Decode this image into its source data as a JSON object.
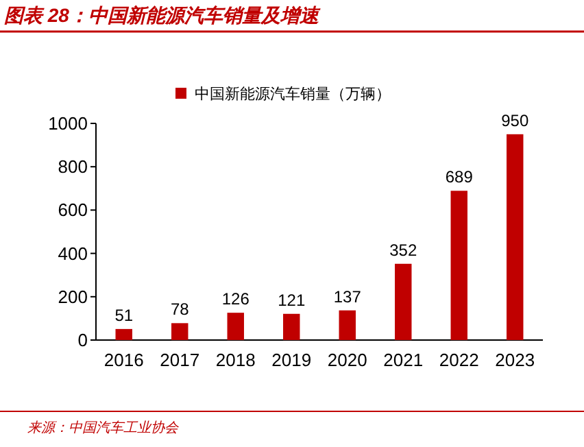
{
  "chart_data": {
    "type": "bar",
    "title": "图表 28：中国新能源汽车销量及增速",
    "categories": [
      "2016",
      "2017",
      "2018",
      "2019",
      "2020",
      "2021",
      "2022",
      "2023"
    ],
    "series": [
      {
        "name": "中国新能源汽车销量（万辆）",
        "color": "#c00000",
        "values": [
          51,
          78,
          126,
          121,
          137,
          352,
          689,
          950
        ]
      }
    ],
    "ylim": [
      0,
      1000
    ],
    "yticks": [
      0,
      200,
      400,
      600,
      800,
      1000
    ],
    "data_labels": true,
    "legend": "top",
    "grid": false,
    "annotations": [
      "来源：中国汽车工业协会"
    ]
  }
}
